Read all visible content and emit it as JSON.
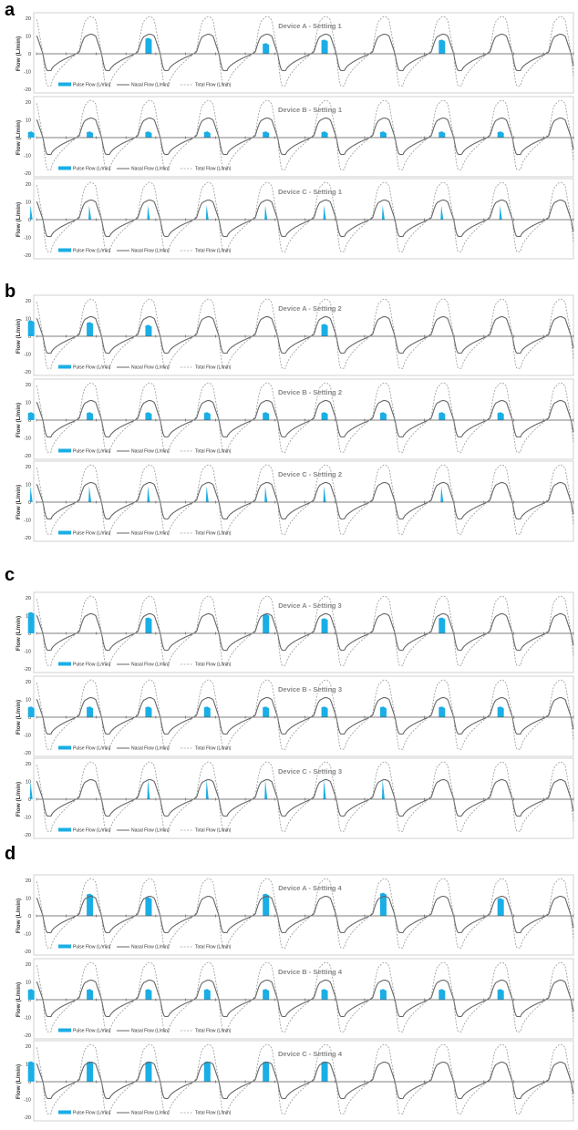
{
  "figure": {
    "panels": [
      {
        "label": "a"
      },
      {
        "label": "b"
      },
      {
        "label": "c"
      },
      {
        "label": "d"
      }
    ]
  },
  "colors": {
    "pulse": "#1aaee5",
    "nasal": "#666666",
    "total": "#9a9a9a",
    "axis": "#555555",
    "frame": "#d0d0d0",
    "title": "#888888"
  },
  "chart_data": [
    {
      "type": "area",
      "panel": "a",
      "title": "Device A - Setting 1",
      "ylabel": "Flow (L/min)",
      "yticks": [
        "20",
        "10",
        "0",
        "-10",
        "-20"
      ],
      "ylim": [
        -20,
        20
      ],
      "grid": false,
      "legend_position": "bottom-left",
      "legend": [
        "Pulse Flow (L/min)",
        "Nasal Flow (L/min)",
        "Total Flow (L/min)"
      ],
      "breaths": 9,
      "breath_period": 1,
      "series": [
        {
          "name": "Nasal Flow (L/min)",
          "style": "solid",
          "peak": 11,
          "trough": -10
        },
        {
          "name": "Total Flow (L/min)",
          "style": "dashed",
          "peak": 21,
          "trough": -19
        },
        {
          "name": "Pulse Flow (L/min)",
          "style": "area",
          "pulses": [
            {
              "breath": 3,
              "value": 9
            },
            {
              "breath": 5,
              "value": 6
            },
            {
              "breath": 6,
              "value": 8
            },
            {
              "breath": 8,
              "value": 8
            }
          ]
        }
      ]
    },
    {
      "type": "area",
      "panel": "a",
      "title": "Device B - Setting 1",
      "ylabel": "Flow (L/min)",
      "yticks": [
        "20",
        "10",
        "0",
        "-10",
        "-20"
      ],
      "ylim": [
        -20,
        20
      ],
      "grid": false,
      "legend_position": "bottom-left",
      "legend": [
        "Pulse Flow (L/min)",
        "Nasal Flow (L/min)",
        "Total Flow (L/min)"
      ],
      "breaths": 9,
      "breath_period": 1,
      "series": [
        {
          "name": "Nasal Flow (L/min)",
          "style": "solid",
          "peak": 11,
          "trough": -10
        },
        {
          "name": "Total Flow (L/min)",
          "style": "dashed",
          "peak": 21,
          "trough": -19
        },
        {
          "name": "Pulse Flow (L/min)",
          "style": "area",
          "pulses": [
            {
              "breath": 1,
              "value": 3.5
            },
            {
              "breath": 2,
              "value": 3.5
            },
            {
              "breath": 3,
              "value": 3.5
            },
            {
              "breath": 4,
              "value": 3.5
            },
            {
              "breath": 5,
              "value": 3.5
            },
            {
              "breath": 6,
              "value": 3.5
            },
            {
              "breath": 7,
              "value": 3.5
            },
            {
              "breath": 8,
              "value": 3.5
            },
            {
              "breath": 9,
              "value": 3.5
            }
          ]
        }
      ]
    },
    {
      "type": "area",
      "panel": "a",
      "title": "Device C - Setting 1",
      "ylabel": "Flow (L/min)",
      "yticks": [
        "20",
        "10",
        "0",
        "-10",
        "-20"
      ],
      "ylim": [
        -20,
        20
      ],
      "grid": false,
      "legend_position": "bottom-left",
      "legend": [
        "Pulse Flow (L/min)",
        "Nasal Flow (L/min)",
        "Total Flow (L/min)"
      ],
      "breaths": 9,
      "breath_period": 1,
      "series": [
        {
          "name": "Nasal Flow (L/min)",
          "style": "solid",
          "peak": 11,
          "trough": -10
        },
        {
          "name": "Total Flow (L/min)",
          "style": "dashed",
          "peak": 21,
          "trough": -19
        },
        {
          "name": "Pulse Flow (L/min)",
          "style": "spike",
          "pulses": [
            {
              "breath": 1,
              "value": 8
            },
            {
              "breath": 2,
              "value": 8
            },
            {
              "breath": 3,
              "value": 8
            },
            {
              "breath": 4,
              "value": 8
            },
            {
              "breath": 5,
              "value": 8
            },
            {
              "breath": 6,
              "value": 8
            },
            {
              "breath": 7,
              "value": 8
            },
            {
              "breath": 8,
              "value": 8
            },
            {
              "breath": 9,
              "value": 8
            }
          ]
        }
      ]
    },
    {
      "type": "area",
      "panel": "b",
      "title": "Device A - Setting 2",
      "ylabel": "Flow (L/min)",
      "yticks": [
        "20",
        "10",
        "0",
        "-10",
        "-20"
      ],
      "ylim": [
        -20,
        20
      ],
      "grid": false,
      "legend_position": "bottom-left",
      "legend": [
        "Pulse Flow (L/min)",
        "Nasal Flow (L/min)",
        "Total Flow (L/min)"
      ],
      "breaths": 9,
      "breath_period": 1,
      "series": [
        {
          "name": "Nasal Flow (L/min)",
          "style": "solid",
          "peak": 11,
          "trough": -10
        },
        {
          "name": "Total Flow (L/min)",
          "style": "dashed",
          "peak": 21,
          "trough": -19
        },
        {
          "name": "Pulse Flow (L/min)",
          "style": "area",
          "pulses": [
            {
              "breath": 1,
              "value": 9
            },
            {
              "breath": 2,
              "value": 8
            },
            {
              "breath": 3,
              "value": 6.5
            },
            {
              "breath": 6,
              "value": 7
            }
          ]
        }
      ]
    },
    {
      "type": "area",
      "panel": "b",
      "title": "Device B - Setting 2",
      "ylabel": "Flow (L/min)",
      "yticks": [
        "20",
        "10",
        "0",
        "-10",
        "-20"
      ],
      "ylim": [
        -20,
        20
      ],
      "grid": false,
      "legend_position": "bottom-left",
      "legend": [
        "Pulse Flow (L/min)",
        "Nasal Flow (L/min)",
        "Total Flow (L/min)"
      ],
      "breaths": 9,
      "breath_period": 1,
      "series": [
        {
          "name": "Nasal Flow (L/min)",
          "style": "solid",
          "peak": 11,
          "trough": -10
        },
        {
          "name": "Total Flow (L/min)",
          "style": "dashed",
          "peak": 21,
          "trough": -19
        },
        {
          "name": "Pulse Flow (L/min)",
          "style": "area",
          "pulses": [
            {
              "breath": 1,
              "value": 4.5
            },
            {
              "breath": 2,
              "value": 4.5
            },
            {
              "breath": 3,
              "value": 4.5
            },
            {
              "breath": 4,
              "value": 4.5
            },
            {
              "breath": 5,
              "value": 4.5
            },
            {
              "breath": 6,
              "value": 4.5
            },
            {
              "breath": 7,
              "value": 4.5
            },
            {
              "breath": 8,
              "value": 4.5
            },
            {
              "breath": 9,
              "value": 4.5
            }
          ]
        }
      ]
    },
    {
      "type": "area",
      "panel": "b",
      "title": "Device C - Setting 2",
      "ylabel": "Flow (L/min)",
      "yticks": [
        "20",
        "10",
        "0",
        "-10",
        "-20"
      ],
      "ylim": [
        -20,
        20
      ],
      "grid": false,
      "legend_position": "bottom-left",
      "legend": [
        "Pulse Flow (L/min)",
        "Nasal Flow (L/min)",
        "Total Flow (L/min)"
      ],
      "breaths": 9,
      "breath_period": 1,
      "series": [
        {
          "name": "Nasal Flow (L/min)",
          "style": "solid",
          "peak": 11,
          "trough": -10
        },
        {
          "name": "Total Flow (L/min)",
          "style": "dashed",
          "peak": 21,
          "trough": -19
        },
        {
          "name": "Pulse Flow (L/min)",
          "style": "spike",
          "pulses": [
            {
              "breath": 1,
              "value": 9
            },
            {
              "breath": 2,
              "value": 9
            },
            {
              "breath": 3,
              "value": 9
            },
            {
              "breath": 4,
              "value": 9
            },
            {
              "breath": 5,
              "value": 9
            },
            {
              "breath": 6,
              "value": 9
            },
            {
              "breath": 8,
              "value": 9
            }
          ]
        }
      ]
    },
    {
      "type": "area",
      "panel": "c",
      "title": "Device A - Setting 3",
      "ylabel": "Flow (L/min)",
      "yticks": [
        "20",
        "10",
        "0",
        "-10",
        "-20"
      ],
      "ylim": [
        -20,
        20
      ],
      "grid": false,
      "legend_position": "bottom-left",
      "legend": [
        "Pulse Flow (L/min)",
        "Nasal Flow (L/min)",
        "Total Flow (L/min)"
      ],
      "breaths": 9,
      "breath_period": 1,
      "series": [
        {
          "name": "Nasal Flow (L/min)",
          "style": "solid",
          "peak": 11,
          "trough": -10
        },
        {
          "name": "Total Flow (L/min)",
          "style": "dashed",
          "peak": 21,
          "trough": -19
        },
        {
          "name": "Pulse Flow (L/min)",
          "style": "area",
          "pulses": [
            {
              "breath": 1,
              "value": 12
            },
            {
              "breath": 3,
              "value": 9
            },
            {
              "breath": 5,
              "value": 11
            },
            {
              "breath": 6,
              "value": 8.5
            },
            {
              "breath": 8,
              "value": 9
            }
          ]
        }
      ]
    },
    {
      "type": "area",
      "panel": "c",
      "title": "Device B - Setting 3",
      "ylabel": "Flow (L/min)",
      "yticks": [
        "20",
        "10",
        "0",
        "-10",
        "-20"
      ],
      "ylim": [
        -20,
        20
      ],
      "grid": false,
      "legend_position": "bottom-left",
      "legend": [
        "Pulse Flow (L/min)",
        "Nasal Flow (L/min)",
        "Total Flow (L/min)"
      ],
      "breaths": 9,
      "breath_period": 1,
      "series": [
        {
          "name": "Nasal Flow (L/min)",
          "style": "solid",
          "peak": 11,
          "trough": -10
        },
        {
          "name": "Total Flow (L/min)",
          "style": "dashed",
          "peak": 21,
          "trough": -19
        },
        {
          "name": "Pulse Flow (L/min)",
          "style": "area",
          "pulses": [
            {
              "breath": 1,
              "value": 6
            },
            {
              "breath": 2,
              "value": 6
            },
            {
              "breath": 3,
              "value": 6
            },
            {
              "breath": 4,
              "value": 6
            },
            {
              "breath": 5,
              "value": 6
            },
            {
              "breath": 6,
              "value": 6
            },
            {
              "breath": 7,
              "value": 6
            },
            {
              "breath": 8,
              "value": 6
            },
            {
              "breath": 9,
              "value": 6
            }
          ]
        }
      ]
    },
    {
      "type": "area",
      "panel": "c",
      "title": "Device C - Setting 3",
      "ylabel": "Flow (L/min)",
      "yticks": [
        "20",
        "10",
        "0",
        "-10",
        "-20"
      ],
      "ylim": [
        -20,
        20
      ],
      "grid": false,
      "legend_position": "bottom-left",
      "legend": [
        "Pulse Flow (L/min)",
        "Nasal Flow (L/min)",
        "Total Flow (L/min)"
      ],
      "breaths": 9,
      "breath_period": 1,
      "series": [
        {
          "name": "Nasal Flow (L/min)",
          "style": "solid",
          "peak": 11,
          "trough": -10
        },
        {
          "name": "Total Flow (L/min)",
          "style": "dashed",
          "peak": 21,
          "trough": -19
        },
        {
          "name": "Pulse Flow (L/min)",
          "style": "spike",
          "pulses": [
            {
              "breath": 1,
              "value": 10
            },
            {
              "breath": 3,
              "value": 11
            },
            {
              "breath": 4,
              "value": 11
            },
            {
              "breath": 5,
              "value": 11
            },
            {
              "breath": 6,
              "value": 11
            },
            {
              "breath": 7,
              "value": 11
            }
          ]
        }
      ]
    },
    {
      "type": "area",
      "panel": "d",
      "title": "Device A - Setting 4",
      "ylabel": "Flow (L/min)",
      "yticks": [
        "20",
        "10",
        "0",
        "-10",
        "-20"
      ],
      "ylim": [
        -20,
        20
      ],
      "grid": false,
      "legend_position": "bottom-left",
      "legend": [
        "Pulse Flow (L/min)",
        "Nasal Flow (L/min)",
        "Total Flow (L/min)"
      ],
      "breaths": 9,
      "breath_period": 1,
      "series": [
        {
          "name": "Nasal Flow (L/min)",
          "style": "solid",
          "peak": 11,
          "trough": -10
        },
        {
          "name": "Total Flow (L/min)",
          "style": "dashed",
          "peak": 21,
          "trough": -19
        },
        {
          "name": "Pulse Flow (L/min)",
          "style": "area",
          "pulses": [
            {
              "breath": 2,
              "value": 12.5
            },
            {
              "breath": 3,
              "value": 10.5
            },
            {
              "breath": 5,
              "value": 12.5
            },
            {
              "breath": 7,
              "value": 13
            },
            {
              "breath": 9,
              "value": 10
            }
          ]
        }
      ]
    },
    {
      "type": "area",
      "panel": "d",
      "title": "Device B - Setting 4",
      "ylabel": "Flow (L/min)",
      "yticks": [
        "20",
        "10",
        "0",
        "-10",
        "-20"
      ],
      "ylim": [
        -20,
        20
      ],
      "grid": false,
      "legend_position": "bottom-left",
      "legend": [
        "Pulse Flow (L/min)",
        "Nasal Flow (L/min)",
        "Total Flow (L/min)"
      ],
      "breaths": 9,
      "breath_period": 1,
      "series": [
        {
          "name": "Nasal Flow (L/min)",
          "style": "solid",
          "peak": 11,
          "trough": -10
        },
        {
          "name": "Total Flow (L/min)",
          "style": "dashed",
          "peak": 21,
          "trough": -19
        },
        {
          "name": "Pulse Flow (L/min)",
          "style": "area",
          "pulses": [
            {
              "breath": 1,
              "value": 6
            },
            {
              "breath": 2,
              "value": 6
            },
            {
              "breath": 3,
              "value": 6
            },
            {
              "breath": 4,
              "value": 6
            },
            {
              "breath": 5,
              "value": 6
            },
            {
              "breath": 6,
              "value": 6
            },
            {
              "breath": 7,
              "value": 6
            },
            {
              "breath": 8,
              "value": 6
            },
            {
              "breath": 9,
              "value": 6
            }
          ]
        }
      ]
    },
    {
      "type": "area",
      "panel": "d",
      "title": "Device C - Setting 4",
      "ylabel": "Flow (L/min)",
      "yticks": [
        "20",
        "10",
        "0",
        "-10",
        "-20"
      ],
      "ylim": [
        -20,
        20
      ],
      "grid": false,
      "legend_position": "bottom-left",
      "legend": [
        "Pulse Flow (L/min)",
        "Nasal Flow (L/min)",
        "Total Flow (L/min)"
      ],
      "breaths": 9,
      "breath_period": 1,
      "series": [
        {
          "name": "Nasal Flow (L/min)",
          "style": "solid",
          "peak": 11,
          "trough": -10
        },
        {
          "name": "Total Flow (L/min)",
          "style": "dashed",
          "peak": 21,
          "trough": -19
        },
        {
          "name": "Pulse Flow (L/min)",
          "style": "area",
          "pulses": [
            {
              "breath": 1,
              "value": 11.5
            },
            {
              "breath": 2,
              "value": 11.5
            },
            {
              "breath": 3,
              "value": 11.5
            },
            {
              "breath": 4,
              "value": 11.5
            },
            {
              "breath": 5,
              "value": 11.5
            },
            {
              "breath": 6,
              "value": 11.5
            }
          ]
        }
      ]
    }
  ]
}
